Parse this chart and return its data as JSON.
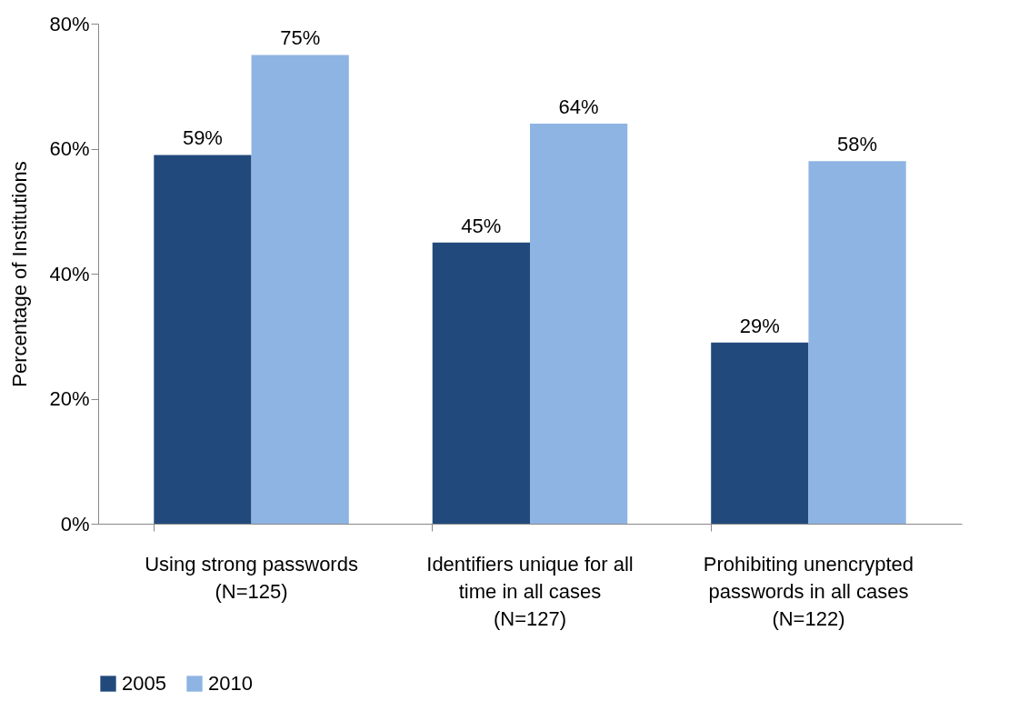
{
  "chart_data": {
    "type": "bar",
    "ylabel": "Percentage of Institutions",
    "categories": [
      "Using strong passwords\n(N=125)",
      "Identifiers unique for all\ntime in all cases\n(N=127)",
      "Prohibiting unencrypted\npasswords in all cases\n(N=122)"
    ],
    "series": [
      {
        "name": "2005",
        "color": "#22497c",
        "values": [
          59,
          45,
          29
        ],
        "value_labels": [
          "59%",
          "45%",
          "29%"
        ]
      },
      {
        "name": "2010",
        "color": "#8eb4e3",
        "values": [
          75,
          64,
          58
        ],
        "value_labels": [
          "75%",
          "64%",
          "58%"
        ]
      }
    ],
    "ylim": [
      0,
      80
    ],
    "yticks": [
      {
        "value": 0,
        "label": "0%"
      },
      {
        "value": 20,
        "label": "20%"
      },
      {
        "value": 40,
        "label": "40%"
      },
      {
        "value": 60,
        "label": "60%"
      },
      {
        "value": 80,
        "label": "80%"
      }
    ],
    "grid": false,
    "legend": "bottom"
  }
}
